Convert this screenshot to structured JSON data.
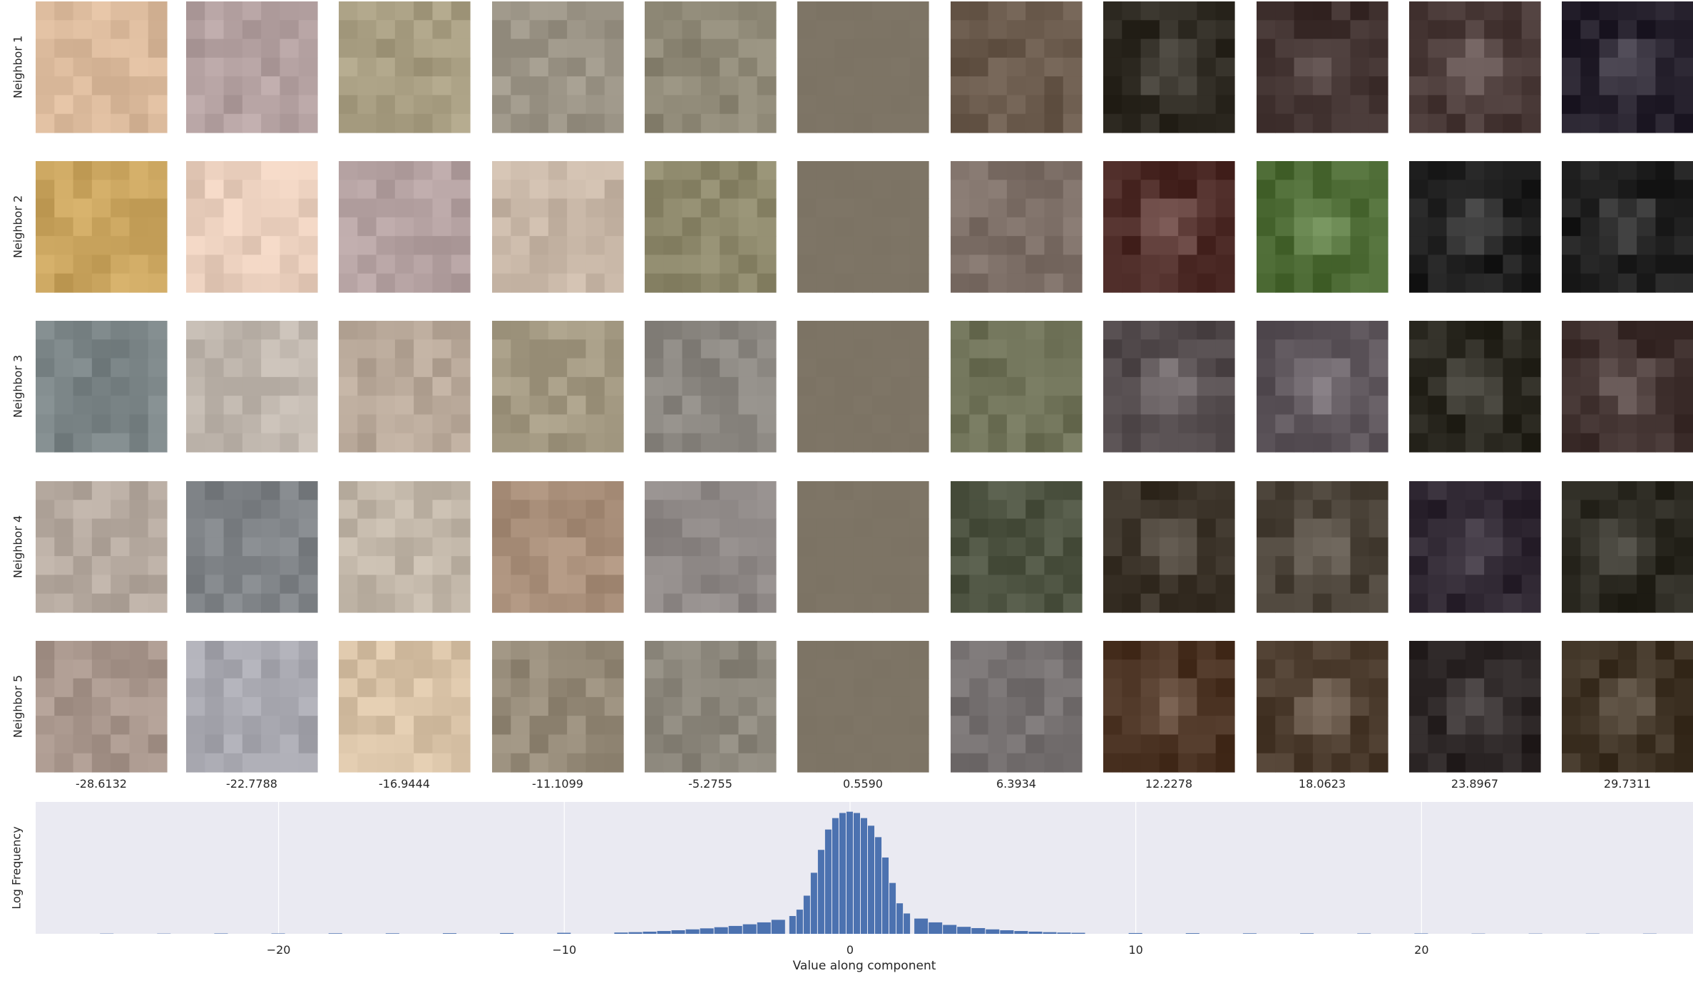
{
  "chart_data": {
    "type": "image-grid-with-histogram",
    "row_labels": [
      "Neighbor 1",
      "Neighbor 2",
      "Neighbor 3",
      "Neighbor 4",
      "Neighbor 5"
    ],
    "column_values": [
      "-28.6132",
      "-22.7788",
      "-16.9444",
      "-11.1099",
      "-5.2755",
      "0.5590",
      "6.3934",
      "12.2278",
      "18.0623",
      "23.8967",
      "29.7311"
    ],
    "tile_colors": [
      [
        "#d9b89a",
        "#b4a1a1",
        "#a89e82",
        "#9b9486",
        "#8e8876",
        "#7d7465",
        "#6a5a4c",
        "#2e2a22",
        "#3e2f2d",
        "#4a3a38",
        "#25202c"
      ],
      [
        "#c9a45e",
        "#e8cdbb",
        "#b4a1a1",
        "#c9b8a8",
        "#8f8a6d",
        "#7d7465",
        "#7e7068",
        "#4c2a26",
        "#4c6a34",
        "#1e1e1e",
        "#1e1e1e"
      ],
      [
        "#7a8486",
        "#c0b7ae",
        "#b9a99a",
        "#a49a83",
        "#8a8680",
        "#7d7465",
        "#6f7258",
        "#524a4c",
        "#5c545a",
        "#2a2820",
        "#3e2f2d"
      ],
      [
        "#b6aaa0",
        "#7e8286",
        "#c2b7a9",
        "#a98f7a",
        "#8e8886",
        "#7d7465",
        "#4e5442",
        "#3a3228",
        "#4a4238",
        "#2d2530",
        "#2a2820"
      ],
      [
        "#a8968c",
        "#a8a8b0",
        "#d8c2a6",
        "#958a78",
        "#8a857a",
        "#7d7465",
        "#757070",
        "#4a3222",
        "#4a3a2c",
        "#2a2424",
        "#3e3224"
      ]
    ],
    "histogram": {
      "bin_centers": [
        -26,
        -24,
        -22,
        -20,
        -18,
        -16,
        -14,
        -12,
        -10,
        -8,
        -7.5,
        -7,
        -6.5,
        -6,
        -5.5,
        -5,
        -4.5,
        -4,
        -3.5,
        -3,
        -2.5,
        -2,
        -1.75,
        -1.5,
        -1.25,
        -1,
        -0.75,
        -0.5,
        -0.25,
        0,
        0.25,
        0.5,
        0.75,
        1,
        1.25,
        1.5,
        1.75,
        2,
        2.5,
        3,
        3.5,
        4,
        4.5,
        5,
        5.5,
        6,
        6.5,
        7,
        7.5,
        8,
        10,
        12,
        14,
        16,
        18,
        20,
        22,
        24,
        26,
        28
      ],
      "log_frequency": [
        0.2,
        0.2,
        0.3,
        0.3,
        0.4,
        0.4,
        0.5,
        0.6,
        0.8,
        1.0,
        1.3,
        1.7,
        2.2,
        2.8,
        3.5,
        4.3,
        5.2,
        6.2,
        7.5,
        9.0,
        11.0,
        14.0,
        19.0,
        30.0,
        48.0,
        66.0,
        82.0,
        91.0,
        95.0,
        96.0,
        95.0,
        91.0,
        85.0,
        76.0,
        60.0,
        40.0,
        24.0,
        16.0,
        12.0,
        9.0,
        7.0,
        5.5,
        4.5,
        3.5,
        2.8,
        2.2,
        1.7,
        1.3,
        1.0,
        0.8,
        0.6,
        0.5,
        0.4,
        0.4,
        0.3,
        0.3,
        0.2,
        0.2,
        0.2,
        0.2
      ],
      "xlabel": "Value along component",
      "ylabel": "Log Frequency",
      "xlim": [
        -28.5,
        29.5
      ],
      "x_ticks": [
        -20,
        -10,
        0,
        10,
        20
      ],
      "x_tick_labels": [
        "−20",
        "−10",
        "0",
        "10",
        "20"
      ],
      "bar_color": "#4c72b0",
      "background_color": "#eaeaf2"
    }
  }
}
